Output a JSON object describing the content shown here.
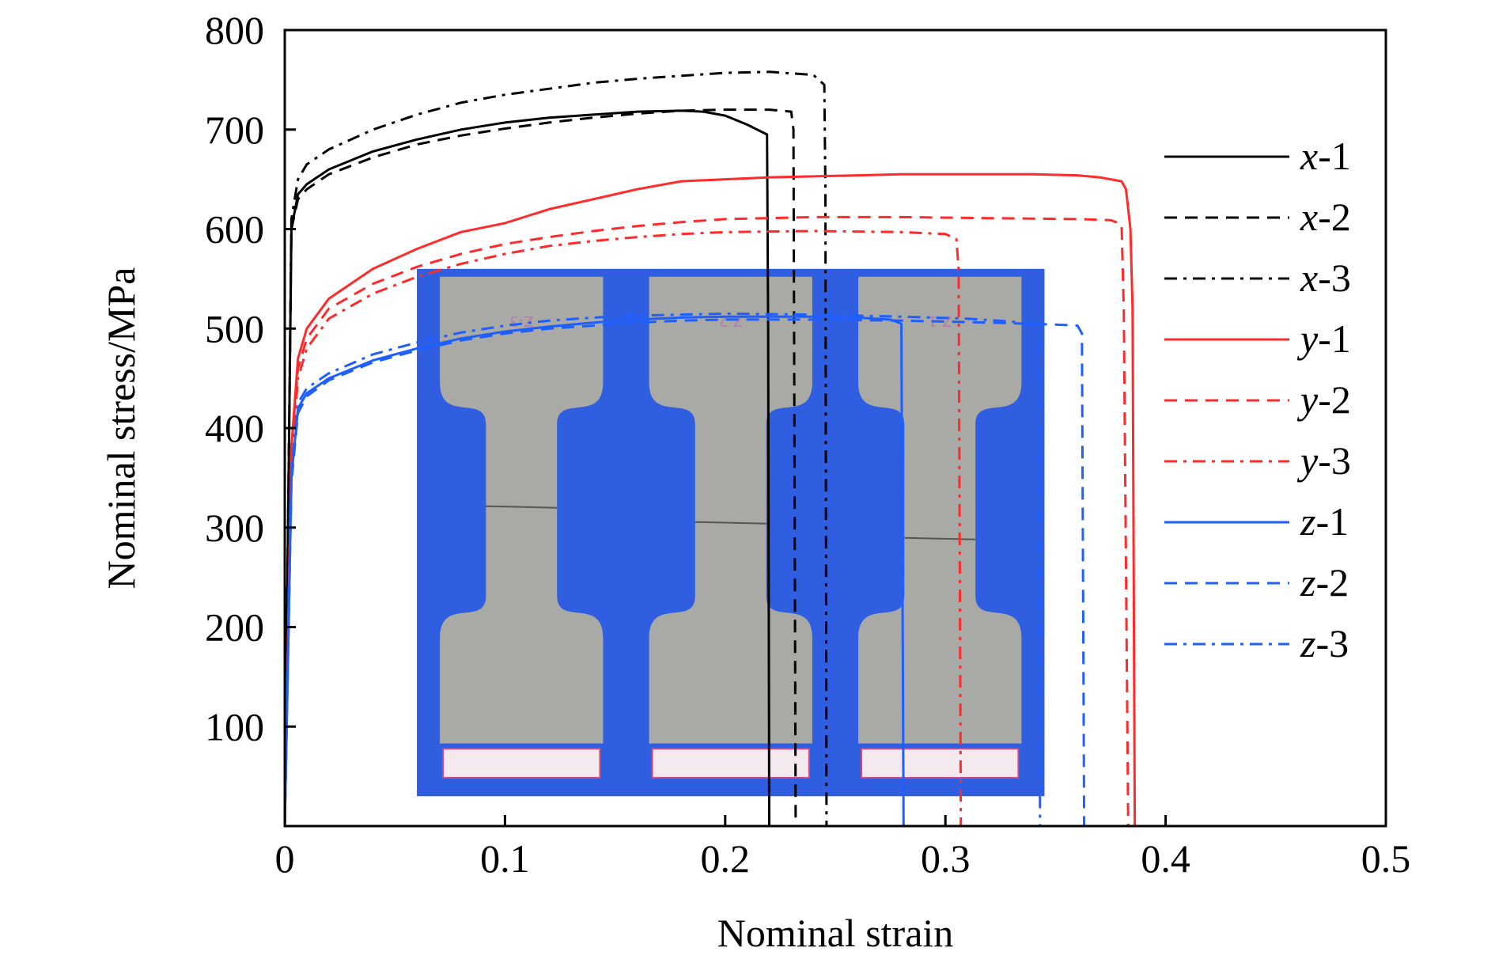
{
  "chart_data": {
    "type": "line",
    "xlabel": "Nominal strain",
    "ylabel": "Nominal stress/MPa",
    "xlim": [
      0,
      0.5
    ],
    "ylim": [
      0,
      800
    ],
    "x_ticks": [
      0,
      0.1,
      0.2,
      0.3,
      0.4,
      0.5
    ],
    "x_tick_labels": [
      "0",
      "0.1",
      "0.2",
      "0.3",
      "0.4",
      "0.5"
    ],
    "y_ticks": [
      100,
      200,
      300,
      400,
      500,
      600,
      700,
      800
    ],
    "y_tick_labels": [
      "100",
      "200",
      "300",
      "400",
      "500",
      "600",
      "700",
      "800"
    ],
    "grid": false,
    "legend_position": "right",
    "series": [
      {
        "name": "x-1",
        "legend_italic": "x",
        "legend_suffix": "-1",
        "color": "#000000",
        "dash": "solid",
        "points": [
          [
            0,
            0
          ],
          [
            0.003,
            600
          ],
          [
            0.006,
            635
          ],
          [
            0.01,
            645
          ],
          [
            0.02,
            660
          ],
          [
            0.04,
            678
          ],
          [
            0.06,
            690
          ],
          [
            0.08,
            700
          ],
          [
            0.1,
            707
          ],
          [
            0.12,
            712
          ],
          [
            0.14,
            715
          ],
          [
            0.16,
            718
          ],
          [
            0.18,
            719
          ],
          [
            0.19,
            718
          ],
          [
            0.2,
            714
          ],
          [
            0.21,
            705
          ],
          [
            0.219,
            695
          ],
          [
            0.2195,
            500
          ],
          [
            0.22,
            0
          ]
        ]
      },
      {
        "name": "x-2",
        "legend_italic": "x",
        "legend_suffix": "-2",
        "color": "#000000",
        "dash": "dashed",
        "points": [
          [
            0,
            0
          ],
          [
            0.003,
            600
          ],
          [
            0.006,
            630
          ],
          [
            0.01,
            640
          ],
          [
            0.02,
            655
          ],
          [
            0.04,
            672
          ],
          [
            0.06,
            685
          ],
          [
            0.08,
            694
          ],
          [
            0.1,
            701
          ],
          [
            0.12,
            707
          ],
          [
            0.14,
            712
          ],
          [
            0.16,
            716
          ],
          [
            0.18,
            719
          ],
          [
            0.2,
            720
          ],
          [
            0.22,
            720
          ],
          [
            0.23,
            718
          ],
          [
            0.231,
            700
          ],
          [
            0.232,
            0
          ]
        ]
      },
      {
        "name": "x-3",
        "legend_italic": "x",
        "legend_suffix": "-3",
        "color": "#000000",
        "dash": "dashdot",
        "points": [
          [
            0,
            0
          ],
          [
            0.003,
            610
          ],
          [
            0.006,
            650
          ],
          [
            0.01,
            665
          ],
          [
            0.02,
            680
          ],
          [
            0.04,
            700
          ],
          [
            0.06,
            715
          ],
          [
            0.08,
            727
          ],
          [
            0.1,
            735
          ],
          [
            0.12,
            741
          ],
          [
            0.14,
            747
          ],
          [
            0.16,
            751
          ],
          [
            0.18,
            754
          ],
          [
            0.2,
            757
          ],
          [
            0.22,
            758
          ],
          [
            0.24,
            755
          ],
          [
            0.245,
            745
          ],
          [
            0.2455,
            640
          ],
          [
            0.246,
            0
          ]
        ]
      },
      {
        "name": "y-1",
        "legend_italic": "y",
        "legend_suffix": "-1",
        "color": "#ff2a2a",
        "dash": "solid",
        "points": [
          [
            0,
            0
          ],
          [
            0.003,
            380
          ],
          [
            0.006,
            470
          ],
          [
            0.01,
            500
          ],
          [
            0.02,
            530
          ],
          [
            0.04,
            560
          ],
          [
            0.06,
            580
          ],
          [
            0.08,
            597
          ],
          [
            0.1,
            606
          ],
          [
            0.12,
            620
          ],
          [
            0.14,
            630
          ],
          [
            0.16,
            640
          ],
          [
            0.18,
            648
          ],
          [
            0.2,
            650
          ],
          [
            0.22,
            652
          ],
          [
            0.24,
            653
          ],
          [
            0.26,
            654
          ],
          [
            0.28,
            655
          ],
          [
            0.3,
            655
          ],
          [
            0.32,
            655
          ],
          [
            0.34,
            655
          ],
          [
            0.36,
            654
          ],
          [
            0.37,
            652
          ],
          [
            0.38,
            648
          ],
          [
            0.382,
            640
          ],
          [
            0.384,
            600
          ],
          [
            0.385,
            520
          ],
          [
            0.386,
            0
          ]
        ]
      },
      {
        "name": "y-2",
        "legend_italic": "y",
        "legend_suffix": "-2",
        "color": "#ff2a2a",
        "dash": "dashed",
        "points": [
          [
            0,
            0
          ],
          [
            0.003,
            380
          ],
          [
            0.006,
            460
          ],
          [
            0.01,
            490
          ],
          [
            0.02,
            520
          ],
          [
            0.04,
            545
          ],
          [
            0.06,
            562
          ],
          [
            0.08,
            575
          ],
          [
            0.1,
            585
          ],
          [
            0.12,
            592
          ],
          [
            0.14,
            598
          ],
          [
            0.16,
            603
          ],
          [
            0.18,
            607
          ],
          [
            0.2,
            610
          ],
          [
            0.24,
            612
          ],
          [
            0.28,
            612
          ],
          [
            0.32,
            611
          ],
          [
            0.36,
            610
          ],
          [
            0.375,
            609
          ],
          [
            0.38,
            605
          ],
          [
            0.381,
            520
          ],
          [
            0.383,
            0
          ]
        ]
      },
      {
        "name": "y-3",
        "legend_italic": "y",
        "legend_suffix": "-3",
        "color": "#ff2a2a",
        "dash": "dashdot",
        "points": [
          [
            0,
            0
          ],
          [
            0.003,
            370
          ],
          [
            0.006,
            450
          ],
          [
            0.01,
            480
          ],
          [
            0.02,
            510
          ],
          [
            0.04,
            535
          ],
          [
            0.06,
            552
          ],
          [
            0.08,
            565
          ],
          [
            0.1,
            575
          ],
          [
            0.12,
            583
          ],
          [
            0.14,
            588
          ],
          [
            0.16,
            592
          ],
          [
            0.18,
            595
          ],
          [
            0.2,
            597
          ],
          [
            0.24,
            598
          ],
          [
            0.28,
            597
          ],
          [
            0.3,
            595
          ],
          [
            0.305,
            590
          ],
          [
            0.306,
            560
          ],
          [
            0.307,
            0
          ]
        ]
      },
      {
        "name": "z-1",
        "legend_italic": "z",
        "legend_suffix": "-1",
        "color": "#1f5fff",
        "dash": "solid",
        "points": [
          [
            0,
            0
          ],
          [
            0.003,
            350
          ],
          [
            0.006,
            420
          ],
          [
            0.01,
            435
          ],
          [
            0.02,
            450
          ],
          [
            0.04,
            468
          ],
          [
            0.06,
            480
          ],
          [
            0.08,
            490
          ],
          [
            0.1,
            497
          ],
          [
            0.12,
            502
          ],
          [
            0.14,
            506
          ],
          [
            0.16,
            509
          ],
          [
            0.18,
            511
          ],
          [
            0.2,
            512
          ],
          [
            0.22,
            512
          ],
          [
            0.24,
            512
          ],
          [
            0.26,
            511
          ],
          [
            0.275,
            509
          ],
          [
            0.28,
            505
          ],
          [
            0.281,
            0
          ]
        ]
      },
      {
        "name": "z-2",
        "legend_italic": "z",
        "legend_suffix": "-2",
        "color": "#1f5fff",
        "dash": "dashed",
        "points": [
          [
            0,
            0
          ],
          [
            0.003,
            345
          ],
          [
            0.006,
            415
          ],
          [
            0.01,
            432
          ],
          [
            0.02,
            448
          ],
          [
            0.04,
            466
          ],
          [
            0.06,
            478
          ],
          [
            0.08,
            488
          ],
          [
            0.1,
            495
          ],
          [
            0.12,
            500
          ],
          [
            0.14,
            503
          ],
          [
            0.16,
            506
          ],
          [
            0.18,
            508
          ],
          [
            0.2,
            509
          ],
          [
            0.24,
            509
          ],
          [
            0.28,
            508
          ],
          [
            0.32,
            506
          ],
          [
            0.35,
            504
          ],
          [
            0.36,
            503
          ],
          [
            0.362,
            495
          ],
          [
            0.363,
            0
          ]
        ]
      },
      {
        "name": "z-3",
        "legend_italic": "z",
        "legend_suffix": "-3",
        "color": "#1f5fff",
        "dash": "dashdot",
        "points": [
          [
            0,
            0
          ],
          [
            0.003,
            355
          ],
          [
            0.006,
            425
          ],
          [
            0.01,
            440
          ],
          [
            0.02,
            455
          ],
          [
            0.04,
            474
          ],
          [
            0.06,
            486
          ],
          [
            0.08,
            496
          ],
          [
            0.1,
            503
          ],
          [
            0.12,
            508
          ],
          [
            0.14,
            511
          ],
          [
            0.16,
            513
          ],
          [
            0.18,
            514
          ],
          [
            0.2,
            515
          ],
          [
            0.24,
            514
          ],
          [
            0.28,
            512
          ],
          [
            0.31,
            510
          ],
          [
            0.33,
            507
          ],
          [
            0.34,
            504
          ],
          [
            0.342,
            495
          ],
          [
            0.343,
            0
          ]
        ]
      }
    ],
    "inset": {
      "type": "photo",
      "background": "#2f5fe0",
      "specimen_color": "#a9aaa6",
      "specimen_labels": [
        "Z-3",
        "Z-2",
        "Z-1"
      ],
      "xlim_fraction": [
        0.06,
        0.345
      ],
      "ylim_data": [
        30,
        560
      ]
    }
  }
}
